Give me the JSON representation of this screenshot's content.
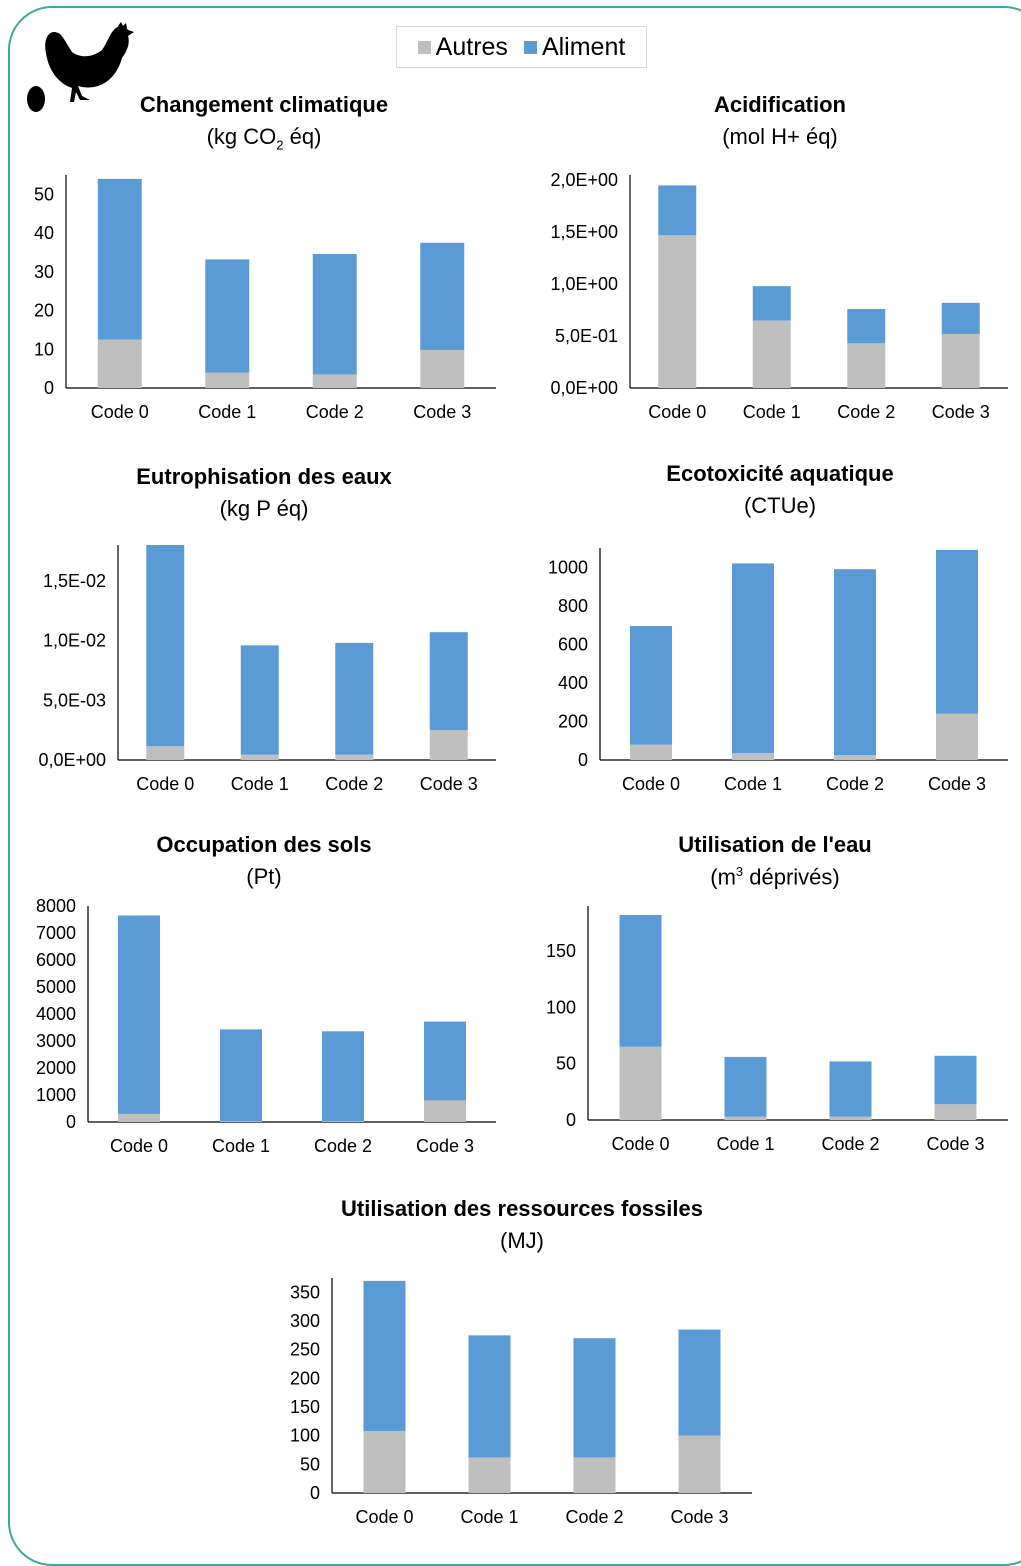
{
  "legend": {
    "items": [
      {
        "label": "Autres",
        "color": "#bfbfbf"
      },
      {
        "label": "Aliment",
        "color": "#5b9bd5"
      }
    ]
  },
  "logo": {
    "icon": "hen-and-egg-icon"
  },
  "chart_data": [
    {
      "type": "bar",
      "stacked": true,
      "title": "Changement climatique",
      "unit_prefix": "(kg CO",
      "unit_sub": "2",
      "unit_suffix": " éq)",
      "categories": [
        "Code 0",
        "Code 1",
        "Code 2",
        "Code 3"
      ],
      "series": [
        {
          "name": "Autres",
          "values": [
            12.5,
            4,
            3.5,
            9.8
          ]
        },
        {
          "name": "Aliment",
          "values": [
            41.5,
            29.2,
            31.1,
            27.7
          ]
        }
      ],
      "ylim": [
        0,
        55
      ],
      "yticks": [
        0,
        10,
        20,
        30,
        40,
        50
      ],
      "yticklabels": [
        "0",
        "10",
        "20",
        "30",
        "40",
        "50"
      ],
      "grid": false
    },
    {
      "type": "bar",
      "stacked": true,
      "title": "Acidification",
      "unit": "(mol H+ éq)",
      "categories": [
        "Code 0",
        "Code 1",
        "Code 2",
        "Code 3"
      ],
      "series": [
        {
          "name": "Autres",
          "values": [
            1.47,
            0.65,
            0.43,
            0.52
          ]
        },
        {
          "name": "Aliment",
          "values": [
            0.48,
            0.33,
            0.33,
            0.3
          ]
        }
      ],
      "ylim": [
        0,
        2.05
      ],
      "yticks": [
        0,
        0.5,
        1.0,
        1.5,
        2.0
      ],
      "yticklabels": [
        "0,0E+00",
        "5,0E-01",
        "1,0E+00",
        "1,5E+00",
        "2,0E+00"
      ],
      "grid": false
    },
    {
      "type": "bar",
      "stacked": true,
      "title": "Eutrophisation des eaux",
      "unit": "(kg P éq)",
      "categories": [
        "Code 0",
        "Code 1",
        "Code 2",
        "Code 3"
      ],
      "series": [
        {
          "name": "Autres",
          "values": [
            0.00115,
            0.00045,
            0.00045,
            0.0025
          ]
        },
        {
          "name": "Aliment",
          "values": [
            0.01685,
            0.00915,
            0.00935,
            0.0082
          ]
        }
      ],
      "ylim": [
        0,
        0.018
      ],
      "yticks": [
        0,
        0.005,
        0.01,
        0.015
      ],
      "yticklabels": [
        "0,0E+00",
        "5,0E-03",
        "1,0E-02",
        "1,5E-02"
      ],
      "grid": false
    },
    {
      "type": "bar",
      "stacked": true,
      "title": "Ecotoxicité aquatique",
      "unit": "(CTUe)",
      "categories": [
        "Code 0",
        "Code 1",
        "Code 2",
        "Code 3"
      ],
      "series": [
        {
          "name": "Autres",
          "values": [
            80,
            35,
            25,
            240
          ]
        },
        {
          "name": "Aliment",
          "values": [
            615,
            985,
            965,
            850
          ]
        }
      ],
      "ylim": [
        0,
        1100
      ],
      "yticks": [
        0,
        200,
        400,
        600,
        800,
        1000
      ],
      "yticklabels": [
        "0",
        "200",
        "400",
        "600",
        "800",
        "1000"
      ],
      "grid": false
    },
    {
      "type": "bar",
      "stacked": true,
      "title": "Occupation des sols",
      "unit": "(Pt)",
      "categories": [
        "Code 0",
        "Code 1",
        "Code 2",
        "Code 3"
      ],
      "series": [
        {
          "name": "Autres",
          "values": [
            300,
            30,
            30,
            800
          ]
        },
        {
          "name": "Aliment",
          "values": [
            7350,
            3400,
            3330,
            2920
          ]
        }
      ],
      "ylim": [
        0,
        8000
      ],
      "yticks": [
        0,
        1000,
        2000,
        3000,
        4000,
        5000,
        6000,
        7000,
        8000
      ],
      "yticklabels": [
        "0",
        "1000",
        "2000",
        "3000",
        "4000",
        "5000",
        "6000",
        "7000",
        "8000"
      ],
      "grid": false
    },
    {
      "type": "bar",
      "stacked": true,
      "title": "Utilisation de l'eau",
      "unit_prefix": "(m",
      "unit_sup": "3",
      "unit_suffix": " déprivés)",
      "categories": [
        "Code 0",
        "Code 1",
        "Code 2",
        "Code 3"
      ],
      "series": [
        {
          "name": "Autres",
          "values": [
            65,
            3,
            3,
            14
          ]
        },
        {
          "name": "Aliment",
          "values": [
            117,
            53,
            49,
            43
          ]
        }
      ],
      "ylim": [
        0,
        190
      ],
      "yticks": [
        0,
        50,
        100,
        150
      ],
      "yticklabels": [
        "0",
        "50",
        "100",
        "150"
      ],
      "grid": false
    },
    {
      "type": "bar",
      "stacked": true,
      "title": "Utilisation des ressources fossiles",
      "unit": "(MJ)",
      "categories": [
        "Code 0",
        "Code 1",
        "Code 2",
        "Code 3"
      ],
      "series": [
        {
          "name": "Autres",
          "values": [
            108,
            62,
            62,
            100
          ]
        },
        {
          "name": "Aliment",
          "values": [
            262,
            213,
            208,
            185
          ]
        }
      ],
      "ylim": [
        0,
        375
      ],
      "yticks": [
        0,
        50,
        100,
        150,
        200,
        250,
        300,
        350
      ],
      "yticklabels": [
        "0",
        "50",
        "100",
        "150",
        "200",
        "250",
        "300",
        "350"
      ],
      "grid": false
    }
  ]
}
